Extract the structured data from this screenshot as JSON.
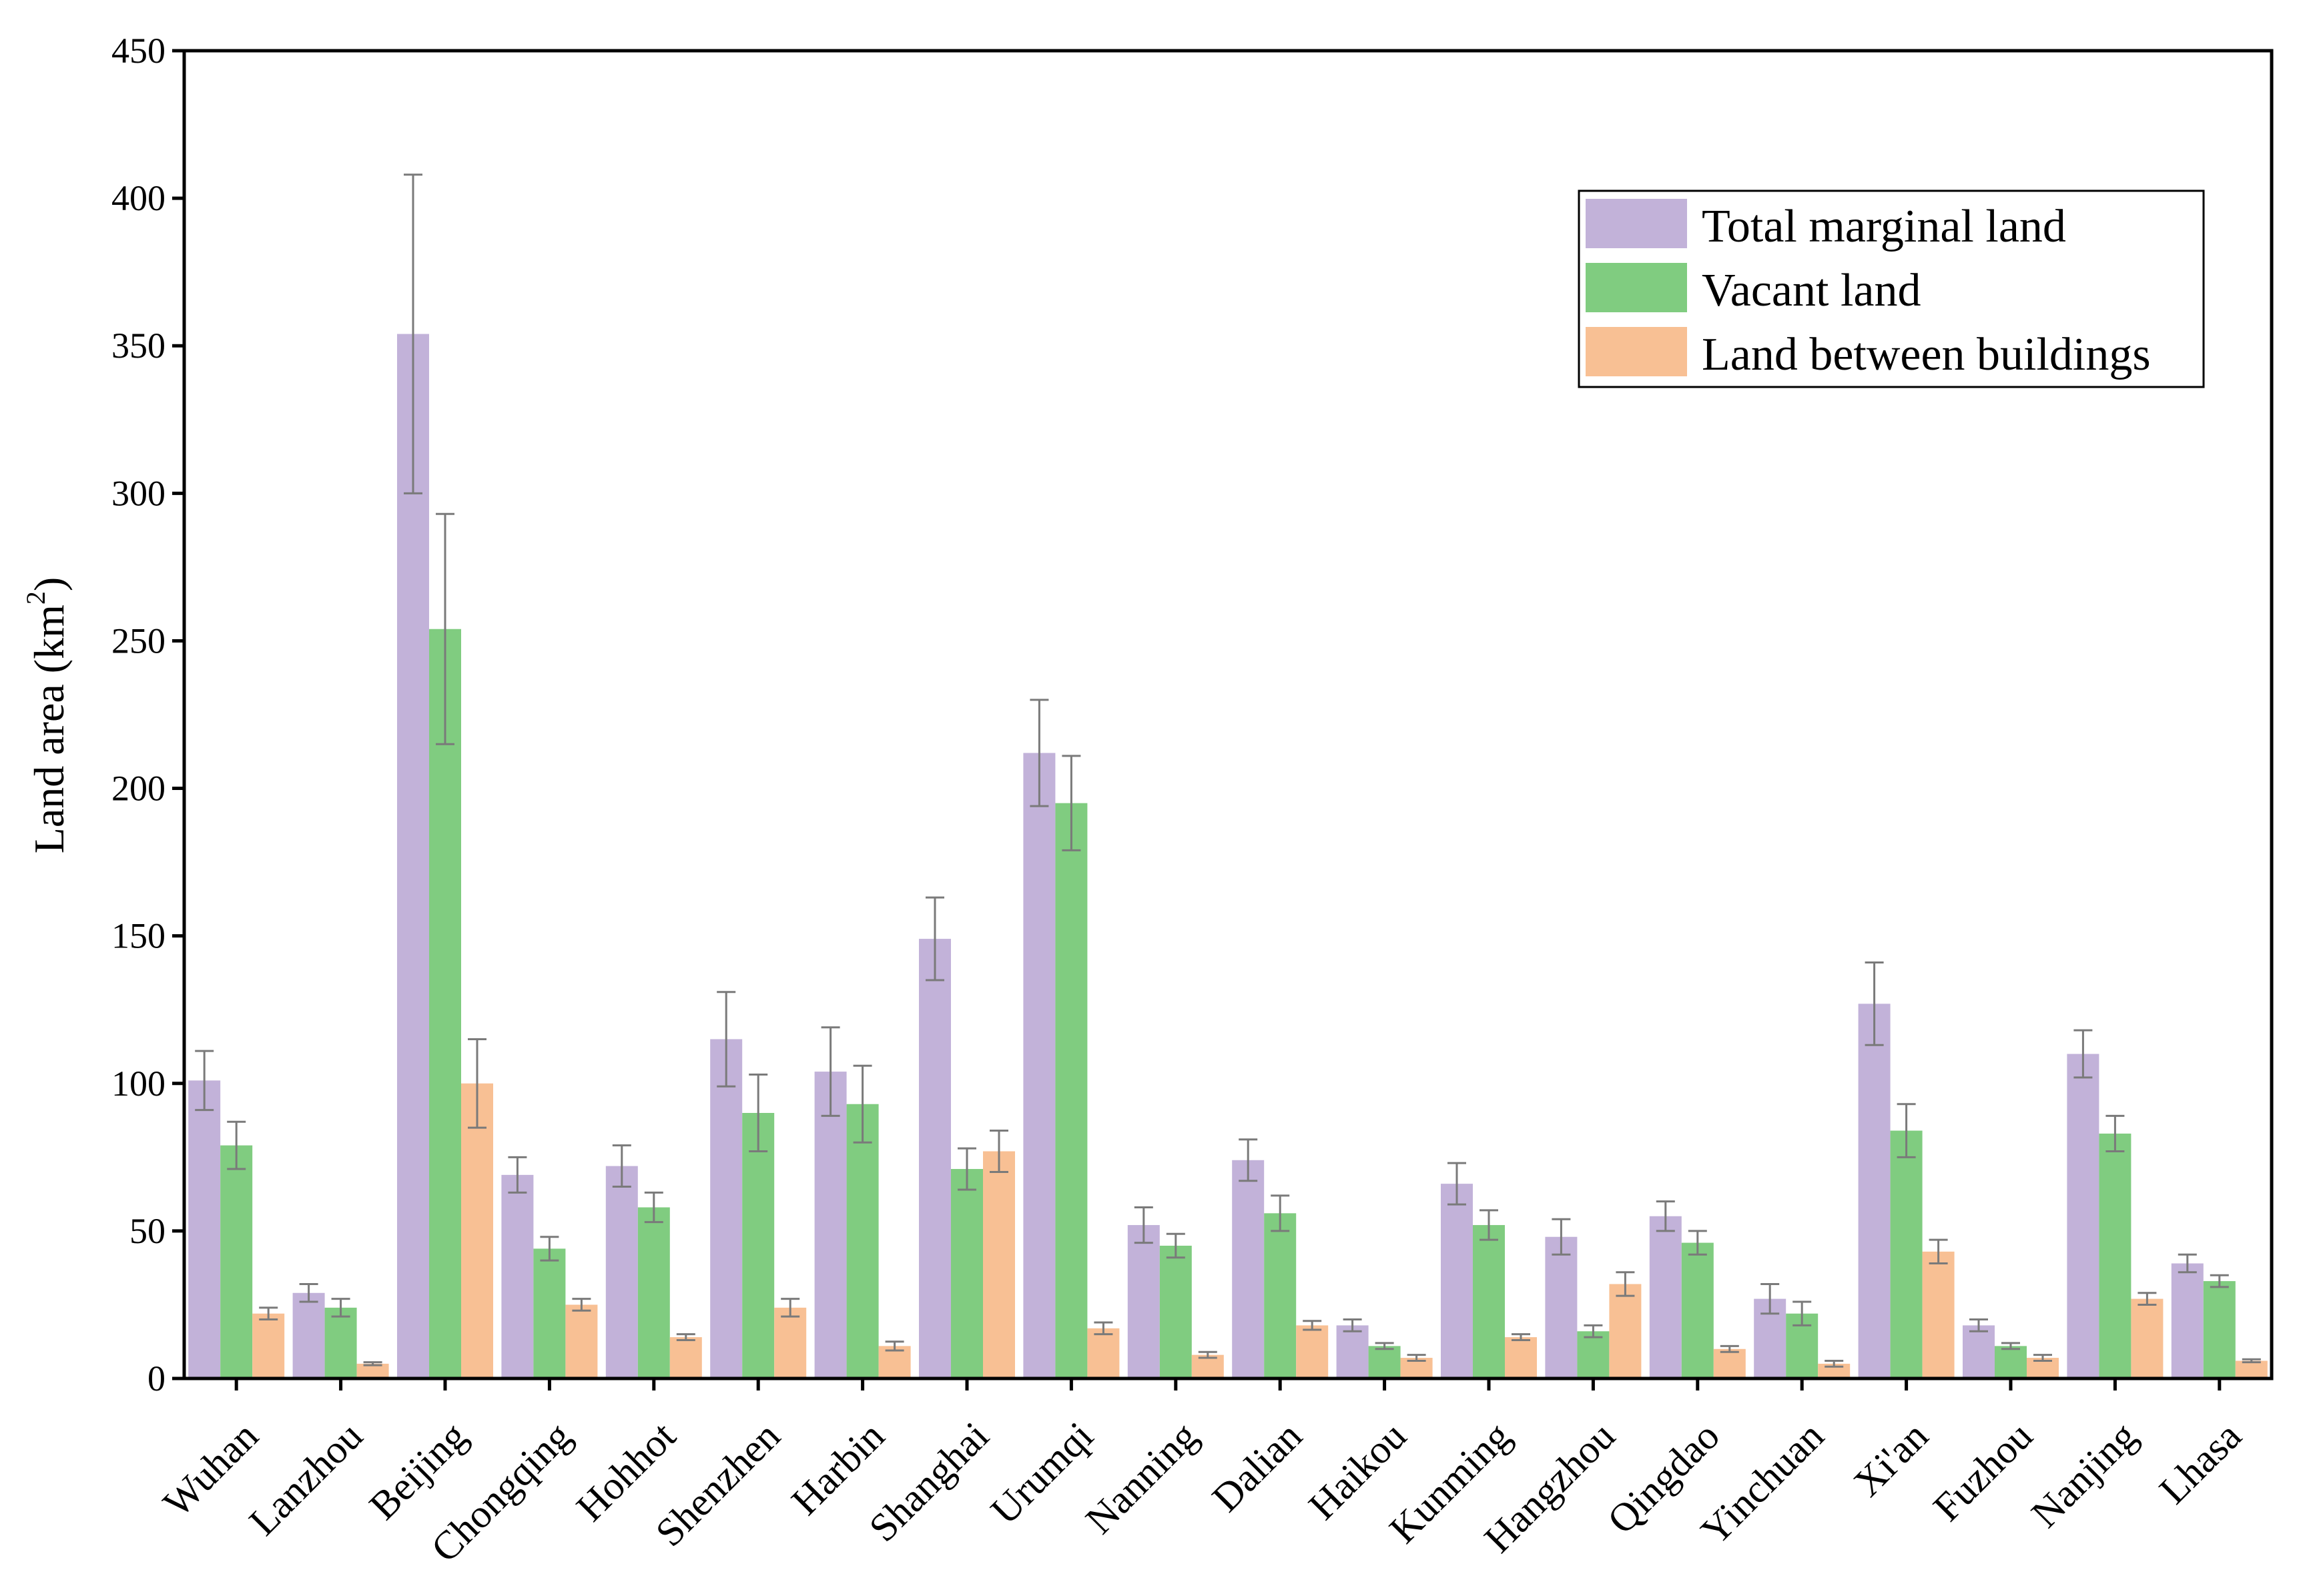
{
  "chart_data": {
    "type": "bar",
    "title": "",
    "xlabel": "",
    "ylabel": "Land area (km",
    "ylabel_sup": "2",
    "ylabel_close": ")",
    "ylim": [
      0,
      450
    ],
    "yticks": [
      "0",
      "50",
      "100",
      "150",
      "200",
      "250",
      "300",
      "350",
      "400",
      "450"
    ],
    "grid": false,
    "legend_position": "top-right",
    "categories": [
      "Wuhan",
      "Lanzhou",
      "Beijing",
      "Chongqing",
      "Hohhot",
      "Shenzhen",
      "Harbin",
      "Shanghai",
      "Urumqi",
      "Nanning",
      "Dalian",
      "Haikou",
      "Kunming",
      "Hangzhou",
      "Qingdao",
      "Yinchuan",
      "Xi'an",
      "Fuzhou",
      "Nanjing",
      "Lhasa"
    ],
    "series": [
      {
        "name": "Total marginal land",
        "color": "#c2b2d9",
        "values": [
          101,
          29,
          354,
          69,
          72,
          115,
          104,
          149,
          212,
          52,
          74,
          18,
          66,
          48,
          55,
          27,
          127,
          18,
          110,
          39
        ],
        "errors": [
          10,
          3,
          54,
          6,
          7,
          16,
          15,
          14,
          18,
          6,
          7,
          2,
          7,
          6,
          5,
          5,
          14,
          2,
          8,
          3
        ]
      },
      {
        "name": "Vacant land",
        "color": "#80cc80",
        "values": [
          79,
          24,
          254,
          44,
          58,
          90,
          93,
          71,
          195,
          45,
          56,
          11,
          52,
          16,
          46,
          22,
          84,
          11,
          83,
          33
        ],
        "errors": [
          8,
          3,
          39,
          4,
          5,
          13,
          13,
          7,
          16,
          4,
          6,
          1,
          5,
          2,
          4,
          4,
          9,
          1,
          6,
          2
        ]
      },
      {
        "name": "Land between buildings",
        "color": "#f8c094",
        "values": [
          22,
          5,
          100,
          25,
          14,
          24,
          11,
          77,
          17,
          8,
          18,
          7,
          14,
          32,
          10,
          5,
          43,
          7,
          27,
          6
        ],
        "errors": [
          2,
          0.5,
          15,
          2,
          1,
          3,
          1.5,
          7,
          2,
          1,
          1.5,
          1,
          1,
          4,
          1,
          1,
          4,
          1,
          2,
          0.5
        ]
      }
    ]
  }
}
